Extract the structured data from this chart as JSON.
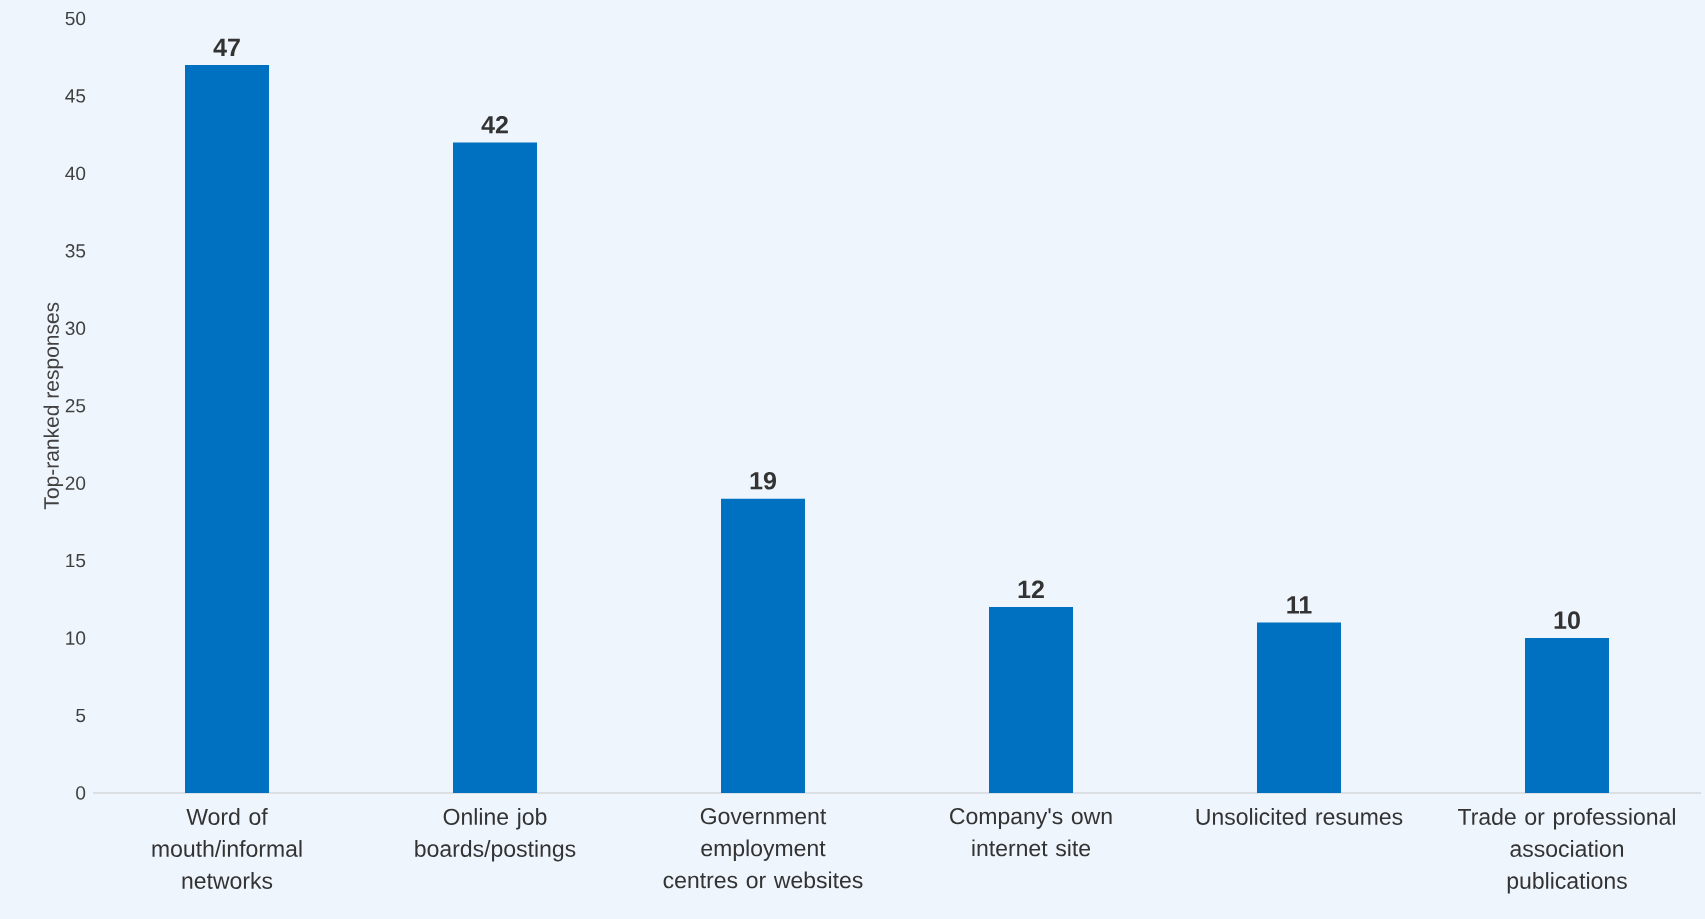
{
  "chart_data": {
    "type": "bar",
    "ylabel": "Top-ranked responses",
    "categories": [
      "Word of mouth/informal networks",
      "Online job boards/postings",
      "Government employment centres or websites",
      "Company's own internet site",
      "Unsolicited resumes",
      "Trade or professional association publications"
    ],
    "values": [
      47,
      42,
      19,
      12,
      11,
      10
    ],
    "color": "#0070c0",
    "ylim": [
      0,
      50
    ],
    "yticks": [
      0,
      5,
      10,
      15,
      20,
      25,
      30,
      35,
      40,
      45,
      50
    ],
    "data_labels": true
  }
}
